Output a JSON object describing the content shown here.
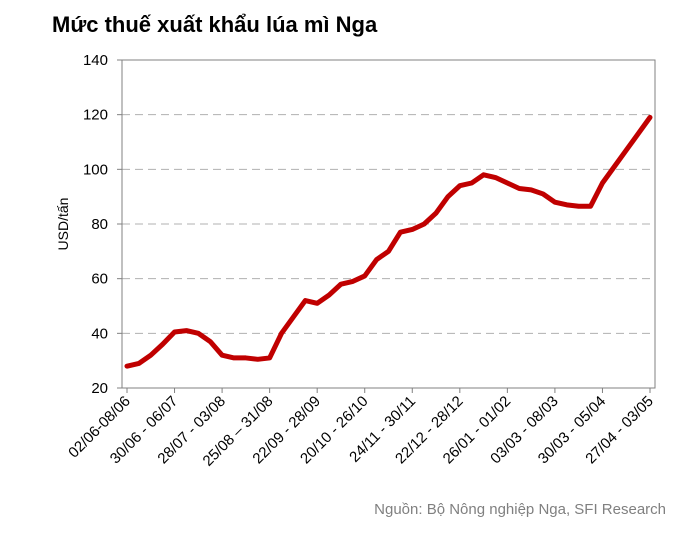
{
  "chart_data": {
    "type": "line",
    "title": "Mức thuế xuất khẩu lúa mì Nga",
    "y_label": "USD/tấn",
    "source": "Nguồn: Bộ Nông nghiệp Nga, SFI Research",
    "categories": [
      "02/06-08/06",
      null,
      null,
      null,
      "30/06 - 06/07",
      null,
      null,
      null,
      "28/07 - 03/08",
      null,
      null,
      null,
      "25/08 – 31/08",
      null,
      null,
      null,
      "22/09 - 28/09",
      null,
      null,
      null,
      "20/10 - 26/10",
      null,
      null,
      null,
      "24/11 - 30/11",
      null,
      null,
      null,
      "22/12 - 28/12",
      null,
      null,
      null,
      "26/01 - 01/02",
      null,
      null,
      null,
      "03/03 - 08/03",
      null,
      null,
      null,
      "30/03 - 05/04",
      null,
      null,
      null,
      "27/04 - 03/05"
    ],
    "series": [
      {
        "name": "Thuế xuất khẩu",
        "color": "#c00000",
        "values": [
          28,
          29,
          32,
          36,
          40.5,
          41,
          40,
          37,
          32,
          31,
          31,
          30.5,
          31,
          40,
          46,
          52,
          51,
          54,
          58,
          59,
          61,
          67,
          70,
          77,
          78,
          80,
          84,
          90,
          94,
          95,
          98,
          97,
          95,
          93,
          92.5,
          91,
          88,
          87,
          86.5,
          86.5,
          95,
          101,
          107,
          113,
          119
        ]
      }
    ],
    "ylim": [
      20,
      140
    ],
    "yticks": [
      20,
      40,
      60,
      80,
      100,
      120,
      140
    ],
    "grid": true
  }
}
